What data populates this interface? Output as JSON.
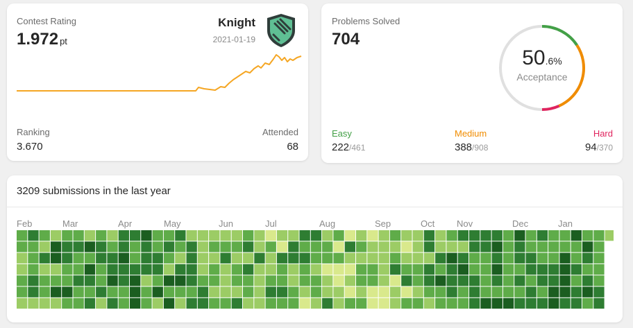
{
  "rating": {
    "title": "Contest Rating",
    "value": "1.972",
    "unit": "pt",
    "badge_name": "Knight",
    "badge_date": "2021-01-19",
    "badge_icon": "knight-badge-icon",
    "ranking_label": "Ranking",
    "ranking_value": "3.670",
    "attended_label": "Attended",
    "attended_value": "68",
    "line_color": "#f5a623"
  },
  "solved": {
    "title": "Problems Solved",
    "value": "704",
    "acceptance_int": "50",
    "acceptance_dec": ".6%",
    "acceptance_label": "Acceptance",
    "easy_label": "Easy",
    "easy_solved": "222",
    "easy_total": "/461",
    "medium_label": "Medium",
    "medium_solved": "388",
    "medium_total": "/908",
    "hard_label": "Hard",
    "hard_solved": "94",
    "hard_total": "/370",
    "colors": {
      "easy": "#43a047",
      "medium": "#f08c00",
      "hard": "#e0245e",
      "track": "#e0e0e0"
    }
  },
  "submissions": {
    "title": "3209 submissions in the last year",
    "months": [
      "Feb",
      "Mar",
      "Apr",
      "May",
      "Jun",
      "Jul",
      "Aug",
      "Sep",
      "Oct",
      "Nov",
      "Dec",
      "Jan"
    ],
    "palette": [
      "#d9e98c",
      "#9ccc65",
      "#5fac49",
      "#2e7d32",
      "#1b5e20"
    ]
  }
}
